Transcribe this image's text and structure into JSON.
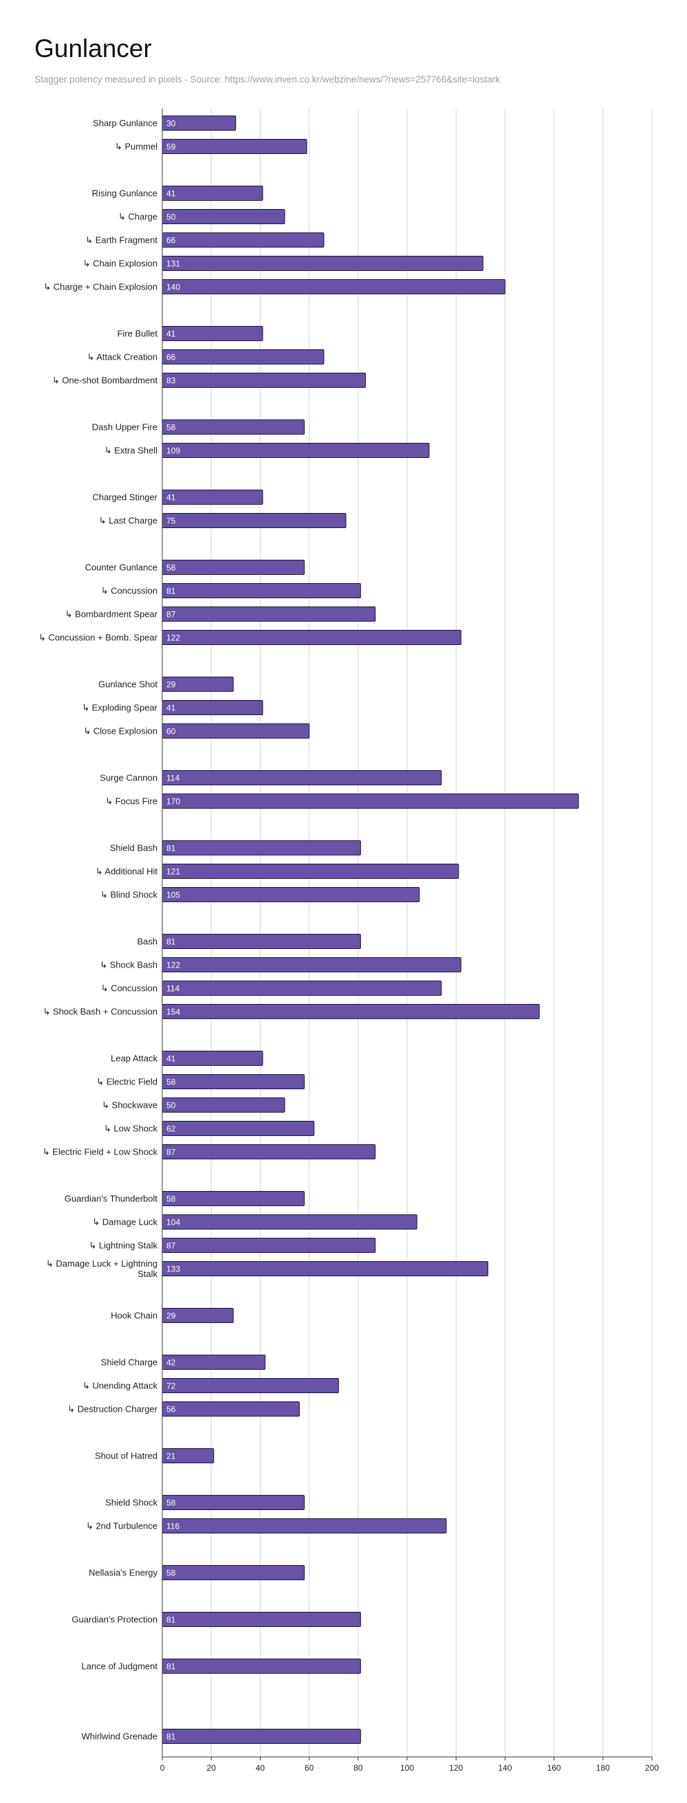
{
  "chart_data": {
    "type": "bar",
    "orientation": "horizontal",
    "title": "Gunlancer",
    "subtitle": "Stagger potency measured in pixels - Source: https://www.inven.co.kr/webzine/news/?news=257766&site=lostark",
    "xlim": [
      0,
      200
    ],
    "xticks": [
      0,
      20,
      40,
      60,
      80,
      100,
      120,
      140,
      160,
      180,
      200
    ],
    "grid": true,
    "bar_color": "#6a52a7",
    "bar_stroke": "#1e1640",
    "groups": [
      [
        [
          "Sharp Gunlance",
          30
        ],
        [
          "↳ Pummel",
          59
        ]
      ],
      [
        [
          "Rising Gunlance",
          41
        ],
        [
          "↳ Charge",
          50
        ],
        [
          "↳ Earth Fragment",
          66
        ],
        [
          "↳ Chain Explosion",
          131
        ],
        [
          "↳ Charge + Chain Explosion",
          140
        ]
      ],
      [
        [
          "Fire Bullet",
          41
        ],
        [
          "↳ Attack Creation",
          66
        ],
        [
          "↳ One-shot Bombardment",
          83
        ]
      ],
      [
        [
          "Dash Upper Fire",
          58
        ],
        [
          "↳ Extra Shell",
          109
        ]
      ],
      [
        [
          "Charged Stinger",
          41
        ],
        [
          "↳ Last Charge",
          75
        ]
      ],
      [
        [
          "Counter Gunlance",
          58
        ],
        [
          "↳ Concussion",
          81
        ],
        [
          "↳ Bombardment Spear",
          87
        ],
        [
          "↳ Concussion + Bomb. Spear",
          122
        ]
      ],
      [
        [
          "Gunlance Shot",
          29
        ],
        [
          "↳ Exploding Spear",
          41
        ],
        [
          "↳ Close Explosion",
          60
        ]
      ],
      [
        [
          "Surge Cannon",
          114
        ],
        [
          "↳ Focus Fire",
          170
        ]
      ],
      [
        [
          "Shield Bash",
          81
        ],
        [
          "↳ Additional Hit",
          121
        ],
        [
          "↳ Blind Shock",
          105
        ]
      ],
      [
        [
          "Bash",
          81
        ],
        [
          "↳ Shock Bash",
          122
        ],
        [
          "↳ Concussion",
          114
        ],
        [
          "↳ Shock Bash + Concussion",
          154
        ]
      ],
      [
        [
          "Leap Attack",
          41
        ],
        [
          "↳ Electric Field",
          58
        ],
        [
          "↳ Shockwave",
          50
        ],
        [
          "↳ Low Shock",
          62
        ],
        [
          "↳ Electric Field + Low Shock",
          87
        ]
      ],
      [
        [
          "Guardian's Thunderbolt",
          58
        ],
        [
          "↳ Damage Luck",
          104
        ],
        [
          "↳ Lightning Stalk",
          87
        ],
        [
          "↳ Damage Luck + Lightning Stalk",
          133
        ]
      ],
      [
        [
          "Hook Chain",
          29
        ]
      ],
      [
        [
          "Shield Charge",
          42
        ],
        [
          "↳ Unending Attack",
          72
        ],
        [
          "↳ Destruction Charger",
          56
        ]
      ],
      [
        [
          "Shout of Hatred",
          21
        ]
      ],
      [
        [
          "Shield Shock",
          58
        ],
        [
          "↳ 2nd Turbulence",
          116
        ]
      ],
      [
        [
          "Nellasia's Energy",
          58
        ]
      ],
      [
        [
          "Guardian's Protection",
          81
        ]
      ],
      [
        [
          "Lance of Judgment",
          81
        ]
      ],
      [],
      [
        [
          "Whirlwind Grenade",
          81
        ]
      ]
    ]
  }
}
